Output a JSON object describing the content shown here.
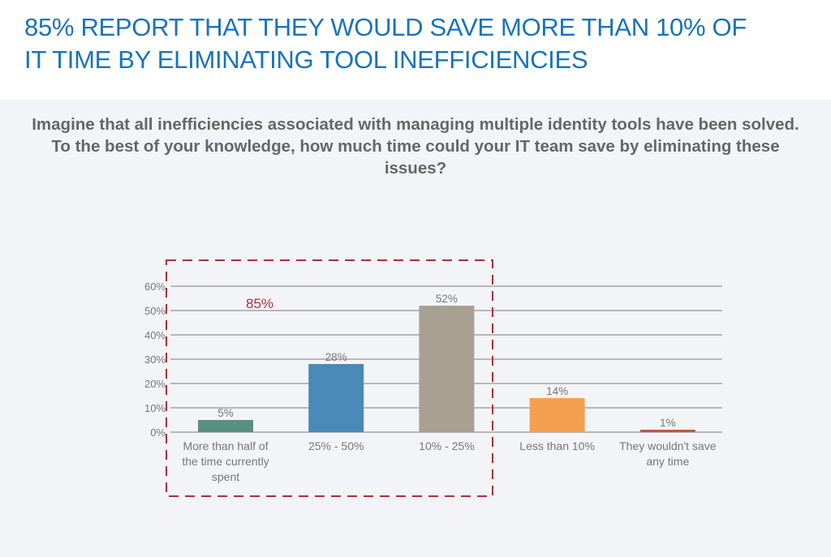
{
  "header": {
    "title_line1": "85% REPORT THAT THEY WOULD SAVE MORE THAN 10% OF",
    "title_line2": "IT TIME BY ELIMINATING TOOL INEFFICIENCIES"
  },
  "question": "Imagine that all inefficiencies associated with managing multiple identity tools have been solved. To the best of your knowledge, how much time could your IT team save by eliminating these issues?",
  "chart_data": {
    "type": "bar",
    "categories": [
      [
        "More than half of",
        "the time currently",
        "spent"
      ],
      [
        "25% - 50%"
      ],
      [
        "10% - 25%"
      ],
      [
        "Less than 10%"
      ],
      [
        "They wouldn't save",
        "any time"
      ]
    ],
    "values": [
      5,
      28,
      52,
      14,
      1
    ],
    "data_labels": [
      "5%",
      "28%",
      "52%",
      "14%",
      "1%"
    ],
    "colors": [
      "#5a9080",
      "#4a8ab8",
      "#a8a090",
      "#f5a050",
      "#c0583a"
    ],
    "ylim": [
      0,
      60
    ],
    "yticks": [
      "0%",
      "10%",
      "20%",
      "30%",
      "40%",
      "50%",
      "60%"
    ],
    "grid": true,
    "annotation": {
      "text": "85%",
      "color": "#a83232",
      "highlighted_categories": [
        0,
        1,
        2
      ]
    }
  }
}
